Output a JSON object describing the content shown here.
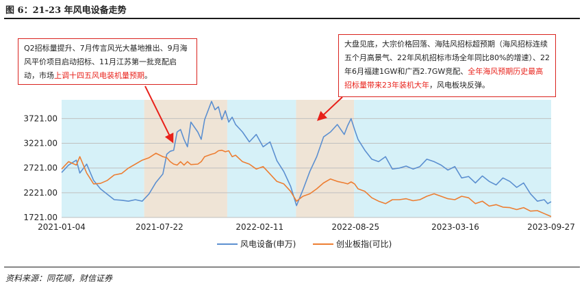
{
  "figure_title": "图 6：21-23 年风电设备走势",
  "source": "资料来源：同花顺，财信证券",
  "annotations": {
    "left": {
      "text_before": "Q2招标量提升、7月传言风光大基地推出、9月海风平价项目启动招标、11月江苏第一批竞配启动，市场",
      "highlight": "上调十四五风电装机量预期",
      "text_after": "。"
    },
    "right": {
      "text_before": "大盘见底，大宗价格回落、海陆风招标超预期（海风招标连续五个月高景气、22年风机招标市场全年同比80%的增速）、22年6月福建1GW和广西2.7GW竞配、",
      "highlight": "全年海风预期历史最高招标量带来23年装机大年",
      "text_after": "，风电板块反弹。"
    }
  },
  "colors": {
    "series_blue": "#5b8fd0",
    "series_orange": "#ed7d31",
    "shade_cyan": "#d6f1f8",
    "shade_beige": "#efe4d6",
    "arrow_red": "#e8211a",
    "grid": "#bfbfbf"
  },
  "chart_data": {
    "type": "line",
    "x_tick_labels": [
      "2021-01-04",
      "2021-07-22",
      "2022-02-11",
      "2022-08-25",
      "2023-03-16",
      "2023-09-27"
    ],
    "y_tick_labels": [
      "1721.00",
      "2221.00",
      "2721.00",
      "3221.00",
      "3721.00"
    ],
    "ylim": [
      1721,
      4100
    ],
    "grid": "horizontal",
    "legend_position": "bottom-center",
    "shaded_periods": [
      {
        "start": "2021-01-04",
        "end": "2021-06-21",
        "color": "cyan"
      },
      {
        "start": "2021-06-21",
        "end": "2021-12-07",
        "color": "beige"
      },
      {
        "start": "2021-12-07",
        "end": "2022-04-26",
        "color": "cyan"
      },
      {
        "start": "2022-04-26",
        "end": "2022-08-22",
        "color": "beige"
      },
      {
        "start": "2022-08-22",
        "end": "2023-09-27",
        "color": "cyan"
      }
    ],
    "series": [
      {
        "name": "风电设备(申万)",
        "color": "#5b8fd0",
        "points": [
          [
            "2021-01-04",
            2630
          ],
          [
            "2021-01-18",
            2780
          ],
          [
            "2021-02-03",
            2880
          ],
          [
            "2021-02-10",
            2620
          ],
          [
            "2021-02-24",
            2800
          ],
          [
            "2021-03-10",
            2470
          ],
          [
            "2021-03-24",
            2300
          ],
          [
            "2021-04-07",
            2190
          ],
          [
            "2021-04-21",
            2080
          ],
          [
            "2021-05-06",
            2070
          ],
          [
            "2021-05-20",
            2050
          ],
          [
            "2021-06-03",
            2080
          ],
          [
            "2021-06-17",
            2050
          ],
          [
            "2021-07-01",
            2200
          ],
          [
            "2021-07-15",
            2430
          ],
          [
            "2021-07-29",
            2600
          ],
          [
            "2021-08-06",
            3000
          ],
          [
            "2021-08-13",
            3060
          ],
          [
            "2021-08-20",
            3080
          ],
          [
            "2021-08-27",
            3450
          ],
          [
            "2021-09-03",
            3500
          ],
          [
            "2021-09-10",
            3300
          ],
          [
            "2021-09-17",
            3150
          ],
          [
            "2021-09-24",
            3650
          ],
          [
            "2021-10-08",
            3450
          ],
          [
            "2021-10-15",
            3300
          ],
          [
            "2021-10-22",
            3700
          ],
          [
            "2021-11-05",
            4070
          ],
          [
            "2021-11-12",
            3900
          ],
          [
            "2021-11-19",
            3960
          ],
          [
            "2021-11-26",
            3700
          ],
          [
            "2021-12-03",
            3880
          ],
          [
            "2021-12-10",
            3650
          ],
          [
            "2021-12-17",
            3750
          ],
          [
            "2021-12-24",
            3600
          ],
          [
            "2022-01-07",
            3450
          ],
          [
            "2022-01-21",
            3250
          ],
          [
            "2022-02-04",
            3400
          ],
          [
            "2022-02-18",
            3150
          ],
          [
            "2022-03-04",
            3250
          ],
          [
            "2022-03-18",
            2870
          ],
          [
            "2022-04-01",
            2650
          ],
          [
            "2022-04-15",
            2350
          ],
          [
            "2022-04-27",
            1960
          ],
          [
            "2022-05-10",
            2280
          ],
          [
            "2022-05-24",
            2650
          ],
          [
            "2022-06-07",
            2950
          ],
          [
            "2022-06-21",
            3350
          ],
          [
            "2022-07-05",
            3450
          ],
          [
            "2022-07-19",
            3600
          ],
          [
            "2022-08-02",
            3400
          ],
          [
            "2022-08-09",
            3580
          ],
          [
            "2022-08-16",
            3720
          ],
          [
            "2022-08-23",
            3500
          ],
          [
            "2022-08-30",
            3300
          ],
          [
            "2022-09-13",
            3080
          ],
          [
            "2022-09-27",
            2900
          ],
          [
            "2022-10-11",
            2850
          ],
          [
            "2022-10-25",
            2950
          ],
          [
            "2022-11-08",
            2700
          ],
          [
            "2022-11-22",
            2720
          ],
          [
            "2022-12-06",
            2760
          ],
          [
            "2022-12-20",
            2700
          ],
          [
            "2023-01-03",
            2750
          ],
          [
            "2023-01-17",
            2900
          ],
          [
            "2023-02-01",
            2850
          ],
          [
            "2023-02-15",
            2780
          ],
          [
            "2023-03-01",
            2680
          ],
          [
            "2023-03-15",
            2750
          ],
          [
            "2023-03-29",
            2520
          ],
          [
            "2023-04-12",
            2550
          ],
          [
            "2023-04-26",
            2420
          ],
          [
            "2023-05-10",
            2560
          ],
          [
            "2023-05-24",
            2450
          ],
          [
            "2023-06-07",
            2380
          ],
          [
            "2023-06-21",
            2520
          ],
          [
            "2023-07-05",
            2450
          ],
          [
            "2023-07-19",
            2330
          ],
          [
            "2023-08-02",
            2420
          ],
          [
            "2023-08-16",
            2200
          ],
          [
            "2023-08-30",
            2050
          ],
          [
            "2023-09-13",
            2080
          ],
          [
            "2023-09-20",
            2000
          ],
          [
            "2023-09-27",
            2040
          ]
        ]
      },
      {
        "name": "创业板指(可比)",
        "color": "#ed7d31",
        "points": [
          [
            "2021-01-04",
            2700
          ],
          [
            "2021-01-18",
            2850
          ],
          [
            "2021-02-03",
            2780
          ],
          [
            "2021-02-10",
            2950
          ],
          [
            "2021-02-24",
            2620
          ],
          [
            "2021-03-10",
            2400
          ],
          [
            "2021-03-24",
            2410
          ],
          [
            "2021-04-07",
            2470
          ],
          [
            "2021-04-21",
            2580
          ],
          [
            "2021-05-06",
            2610
          ],
          [
            "2021-05-20",
            2720
          ],
          [
            "2021-06-03",
            2800
          ],
          [
            "2021-06-17",
            2880
          ],
          [
            "2021-07-01",
            2930
          ],
          [
            "2021-07-15",
            3020
          ],
          [
            "2021-07-29",
            2950
          ],
          [
            "2021-08-06",
            2930
          ],
          [
            "2021-08-13",
            2850
          ],
          [
            "2021-08-20",
            2800
          ],
          [
            "2021-08-27",
            2780
          ],
          [
            "2021-09-03",
            2850
          ],
          [
            "2021-09-10",
            2780
          ],
          [
            "2021-09-17",
            2850
          ],
          [
            "2021-09-24",
            2790
          ],
          [
            "2021-10-08",
            2800
          ],
          [
            "2021-10-15",
            2850
          ],
          [
            "2021-10-22",
            2950
          ],
          [
            "2021-11-05",
            3000
          ],
          [
            "2021-11-12",
            3020
          ],
          [
            "2021-11-19",
            3070
          ],
          [
            "2021-11-26",
            3080
          ],
          [
            "2021-12-03",
            3050
          ],
          [
            "2021-12-10",
            3070
          ],
          [
            "2021-12-17",
            2950
          ],
          [
            "2021-12-24",
            2980
          ],
          [
            "2022-01-07",
            2850
          ],
          [
            "2022-01-21",
            2800
          ],
          [
            "2022-02-04",
            2700
          ],
          [
            "2022-02-18",
            2750
          ],
          [
            "2022-03-04",
            2600
          ],
          [
            "2022-03-18",
            2450
          ],
          [
            "2022-04-01",
            2400
          ],
          [
            "2022-04-15",
            2250
          ],
          [
            "2022-04-27",
            2050
          ],
          [
            "2022-05-10",
            2150
          ],
          [
            "2022-05-24",
            2200
          ],
          [
            "2022-06-07",
            2300
          ],
          [
            "2022-06-21",
            2420
          ],
          [
            "2022-07-05",
            2500
          ],
          [
            "2022-07-19",
            2450
          ],
          [
            "2022-08-02",
            2420
          ],
          [
            "2022-08-09",
            2400
          ],
          [
            "2022-08-16",
            2440
          ],
          [
            "2022-08-23",
            2400
          ],
          [
            "2022-08-30",
            2300
          ],
          [
            "2022-09-13",
            2250
          ],
          [
            "2022-09-27",
            2120
          ],
          [
            "2022-10-11",
            2050
          ],
          [
            "2022-10-25",
            2000
          ],
          [
            "2022-11-08",
            2080
          ],
          [
            "2022-11-22",
            2080
          ],
          [
            "2022-12-06",
            2100
          ],
          [
            "2022-12-20",
            2060
          ],
          [
            "2023-01-03",
            2080
          ],
          [
            "2023-01-17",
            2150
          ],
          [
            "2023-02-01",
            2200
          ],
          [
            "2023-02-15",
            2150
          ],
          [
            "2023-03-01",
            2100
          ],
          [
            "2023-03-15",
            2080
          ],
          [
            "2023-03-29",
            2150
          ],
          [
            "2023-04-12",
            2120
          ],
          [
            "2023-04-26",
            2000
          ],
          [
            "2023-05-10",
            2050
          ],
          [
            "2023-05-24",
            1950
          ],
          [
            "2023-06-07",
            1980
          ],
          [
            "2023-06-21",
            1930
          ],
          [
            "2023-07-05",
            1920
          ],
          [
            "2023-07-19",
            1880
          ],
          [
            "2023-08-02",
            1920
          ],
          [
            "2023-08-16",
            1850
          ],
          [
            "2023-08-30",
            1860
          ],
          [
            "2023-09-13",
            1800
          ],
          [
            "2023-09-20",
            1770
          ],
          [
            "2023-09-27",
            1740
          ]
        ]
      }
    ]
  }
}
